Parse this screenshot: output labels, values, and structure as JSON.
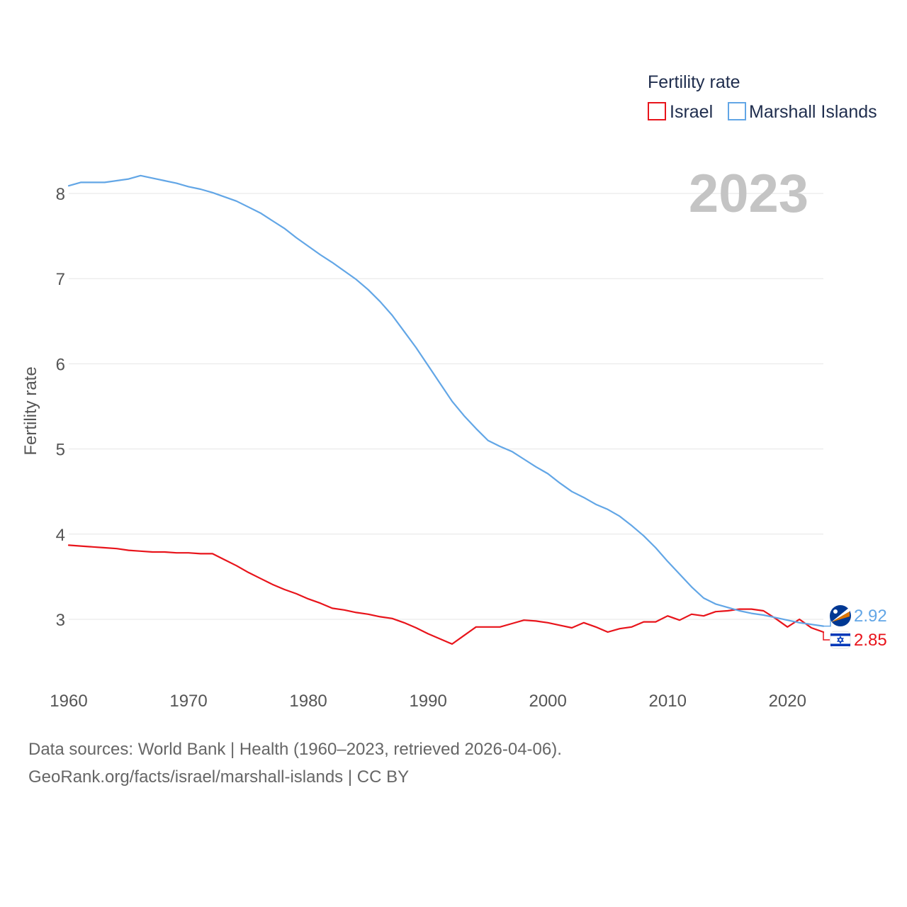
{
  "chart_data": {
    "type": "line",
    "title": "Fertility rate",
    "current_year": "2023",
    "xlabel": "",
    "ylabel": "Fertility rate",
    "xlim": [
      1960,
      2023
    ],
    "ylim": [
      2.5,
      8.4
    ],
    "x_ticks": [
      1960,
      1970,
      1980,
      1990,
      2000,
      2010,
      2020
    ],
    "y_ticks": [
      3,
      4,
      5,
      6,
      7,
      8
    ],
    "grid": true,
    "legend_position": "top-right",
    "x": [
      1960,
      1961,
      1962,
      1963,
      1964,
      1965,
      1966,
      1967,
      1968,
      1969,
      1970,
      1971,
      1972,
      1973,
      1974,
      1975,
      1976,
      1977,
      1978,
      1979,
      1980,
      1981,
      1982,
      1983,
      1984,
      1985,
      1986,
      1987,
      1988,
      1989,
      1990,
      1991,
      1992,
      1993,
      1994,
      1995,
      1996,
      1997,
      1998,
      1999,
      2000,
      2001,
      2002,
      2003,
      2004,
      2005,
      2006,
      2007,
      2008,
      2009,
      2010,
      2011,
      2012,
      2013,
      2014,
      2015,
      2016,
      2017,
      2018,
      2019,
      2020,
      2021,
      2022,
      2023
    ],
    "series": [
      {
        "name": "Israel",
        "color": "#e8141b",
        "flag_icon": "israel-flag-icon",
        "end_label": "2.85",
        "values": [
          3.87,
          3.86,
          3.85,
          3.84,
          3.83,
          3.81,
          3.8,
          3.79,
          3.79,
          3.78,
          3.78,
          3.77,
          3.77,
          3.7,
          3.63,
          3.55,
          3.48,
          3.41,
          3.35,
          3.3,
          3.24,
          3.19,
          3.13,
          3.11,
          3.08,
          3.06,
          3.03,
          3.01,
          2.96,
          2.9,
          2.83,
          2.77,
          2.71,
          2.81,
          2.91,
          2.91,
          2.91,
          2.95,
          2.99,
          2.98,
          2.96,
          2.93,
          2.9,
          2.96,
          2.91,
          2.85,
          2.89,
          2.91,
          2.97,
          2.97,
          3.04,
          2.99,
          3.06,
          3.04,
          3.09,
          3.1,
          3.12,
          3.12,
          3.1,
          3.01,
          2.91,
          3.0,
          2.9,
          2.85
        ]
      },
      {
        "name": "Marshall Islands",
        "color": "#62a6e6",
        "flag_icon": "marshall-islands-flag-icon",
        "end_label": "2.92",
        "values": [
          8.09,
          8.13,
          8.13,
          8.13,
          8.15,
          8.17,
          8.21,
          8.18,
          8.15,
          8.12,
          8.08,
          8.05,
          8.01,
          7.96,
          7.91,
          7.84,
          7.77,
          7.68,
          7.59,
          7.48,
          7.38,
          7.28,
          7.19,
          7.09,
          6.99,
          6.87,
          6.73,
          6.57,
          6.38,
          6.19,
          5.98,
          5.77,
          5.56,
          5.39,
          5.24,
          5.1,
          5.03,
          4.97,
          4.88,
          4.79,
          4.71,
          4.6,
          4.5,
          4.43,
          4.35,
          4.29,
          4.21,
          4.1,
          3.98,
          3.84,
          3.68,
          3.53,
          3.38,
          3.25,
          3.18,
          3.14,
          3.1,
          3.07,
          3.05,
          3.02,
          2.99,
          2.96,
          2.94,
          2.92
        ]
      }
    ]
  },
  "footer": {
    "source": "Data sources: World Bank | Health (1960–2023, retrieved 2026-04-06).",
    "credit": "GeoRank.org/facts/israel/marshall-islands | CC BY"
  }
}
